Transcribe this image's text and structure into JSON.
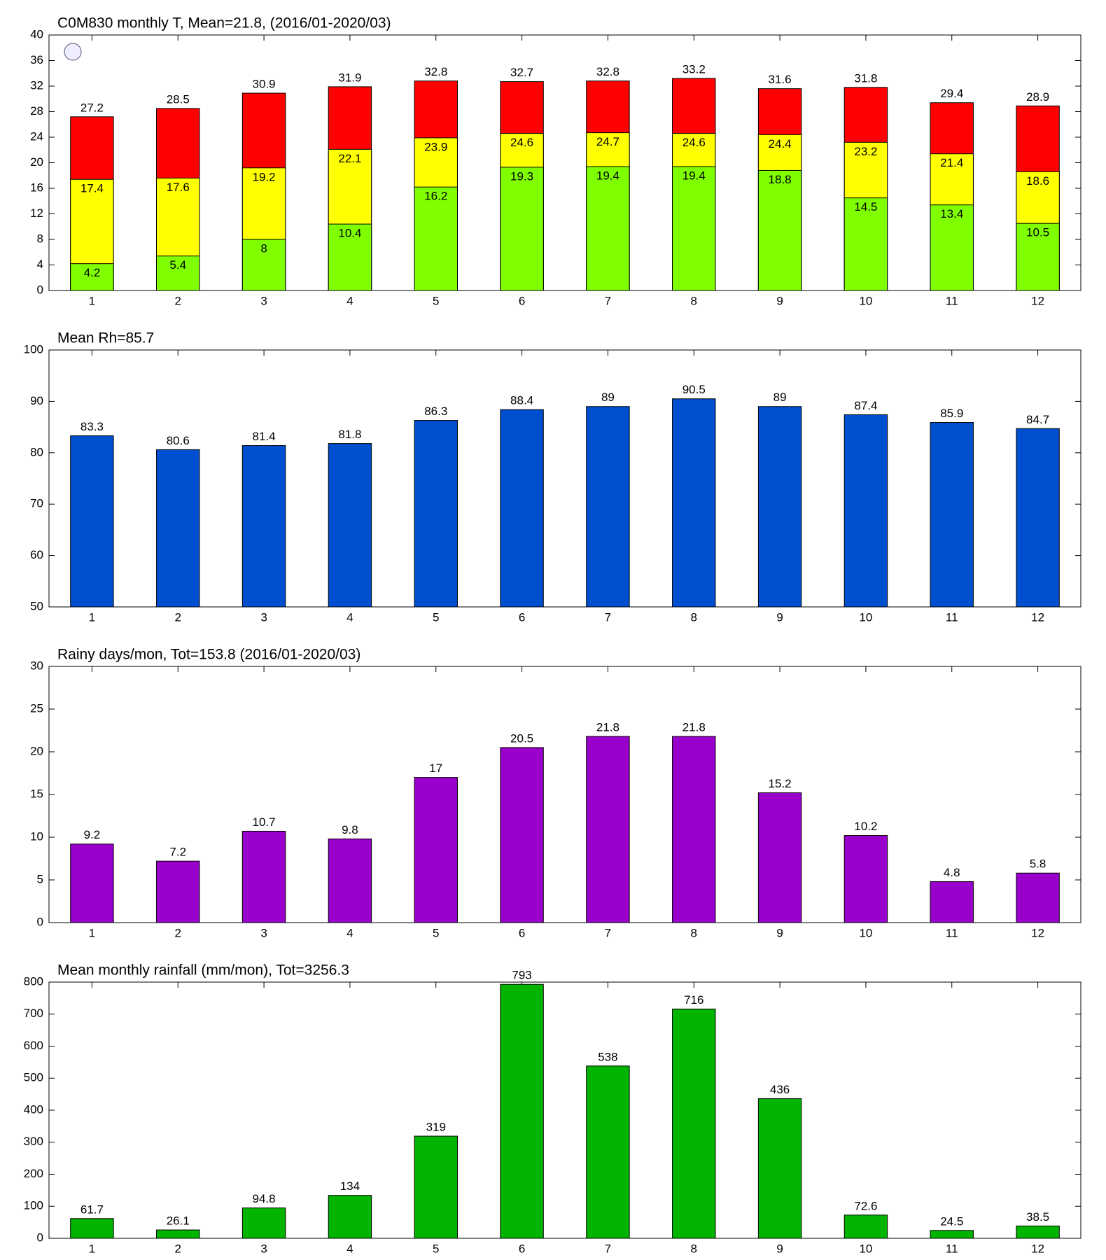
{
  "chart_data": [
    {
      "type": "bar",
      "title": "C0M830 monthly T, Mean=21.8, (2016/01-2020/03)",
      "categories": [
        "1",
        "2",
        "3",
        "4",
        "5",
        "6",
        "7",
        "8",
        "9",
        "10",
        "11",
        "12"
      ],
      "series": [
        {
          "color": "#ff0000",
          "values": [
            27.2,
            28.5,
            30.9,
            31.9,
            32.8,
            32.7,
            32.8,
            33.2,
            31.6,
            31.8,
            29.4,
            28.9
          ]
        },
        {
          "color": "#ffff00",
          "values": [
            17.4,
            17.6,
            19.2,
            22.1,
            23.9,
            24.6,
            24.7,
            24.6,
            24.4,
            23.2,
            21.4,
            18.6
          ]
        },
        {
          "color": "#80ff00",
          "values": [
            4.2,
            5.4,
            8,
            10.4,
            16.2,
            19.3,
            19.4,
            19.4,
            18.8,
            14.5,
            13.4,
            10.5
          ]
        }
      ],
      "ylim": [
        0,
        40
      ],
      "yticks": [
        0,
        4,
        8,
        12,
        16,
        20,
        24,
        28,
        32,
        36,
        40
      ]
    },
    {
      "type": "bar",
      "title": "Mean Rh=85.7",
      "categories": [
        "1",
        "2",
        "3",
        "4",
        "5",
        "6",
        "7",
        "8",
        "9",
        "10",
        "11",
        "12"
      ],
      "series": [
        {
          "color": "#004fcf",
          "values": [
            83.3,
            80.6,
            81.4,
            81.8,
            86.3,
            88.4,
            89,
            90.5,
            89,
            87.4,
            85.9,
            84.7
          ]
        }
      ],
      "ylim": [
        50,
        100
      ],
      "yticks": [
        50,
        60,
        70,
        80,
        90,
        100
      ]
    },
    {
      "type": "bar",
      "title": "Rainy days/mon, Tot=153.8 (2016/01-2020/03)",
      "categories": [
        "1",
        "2",
        "3",
        "4",
        "5",
        "6",
        "7",
        "8",
        "9",
        "10",
        "11",
        "12"
      ],
      "series": [
        {
          "color": "#9900cc",
          "values": [
            9.2,
            7.2,
            10.7,
            9.8,
            17,
            20.5,
            21.8,
            21.8,
            15.2,
            10.2,
            4.8,
            5.8
          ]
        }
      ],
      "ylim": [
        0,
        30
      ],
      "yticks": [
        0,
        5,
        10,
        15,
        20,
        25,
        30
      ]
    },
    {
      "type": "bar",
      "title": "Mean monthly rainfall (mm/mon), Tot=3256.3",
      "categories": [
        "1",
        "2",
        "3",
        "4",
        "5",
        "6",
        "7",
        "8",
        "9",
        "10",
        "11",
        "12"
      ],
      "series": [
        {
          "color": "#00b400",
          "values": [
            61.7,
            26.1,
            94.8,
            134,
            319,
            793,
            538,
            716,
            436,
            72.6,
            24.5,
            38.5
          ]
        }
      ],
      "ylim": [
        0,
        800
      ],
      "yticks": [
        0,
        100,
        200,
        300,
        400,
        500,
        600,
        700,
        800
      ]
    }
  ]
}
